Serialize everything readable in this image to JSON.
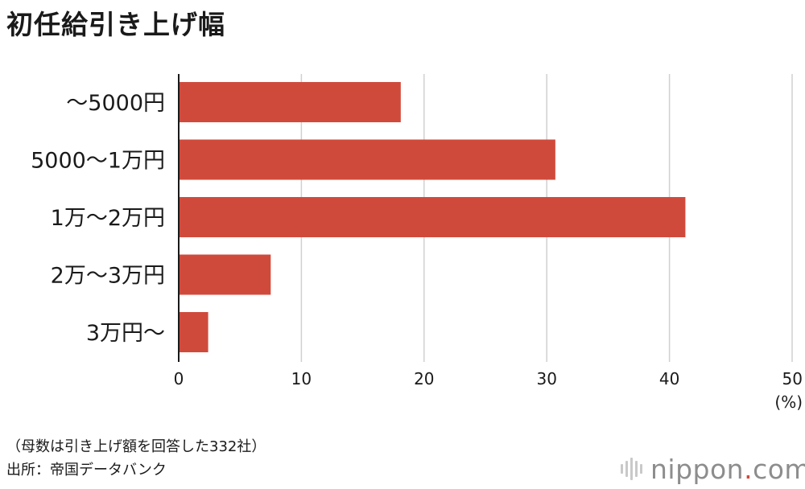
{
  "title": "初任給引き上げ幅",
  "chart_data": {
    "type": "bar",
    "orientation": "horizontal",
    "categories": [
      "〜5000円",
      "5000〜1万円",
      "1万〜2万円",
      "2万〜3万円",
      "3万円〜"
    ],
    "values": [
      18.1,
      30.7,
      41.3,
      7.5,
      2.4
    ],
    "xlim": [
      0,
      50
    ],
    "xticks": [
      0,
      10,
      20,
      30,
      40,
      50
    ],
    "xunit": "(%)",
    "grid": true,
    "bar_color": "#d04a3c"
  },
  "note": {
    "line1": "（母数は引き上げ額を回答した332社）",
    "line2": "出所：帝国データバンク"
  },
  "brand": {
    "name": "nippon",
    "dot": ".",
    "tld": "com"
  },
  "colors": {
    "bar": "#d04a3c",
    "grid": "#d0d0d0",
    "axis": "#1a1a1a",
    "brand_text": "#8d8d8d"
  }
}
